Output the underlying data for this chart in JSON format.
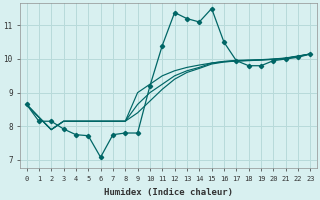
{
  "xlabel": "Humidex (Indice chaleur)",
  "bg_color": "#d8f0f0",
  "grid_color": "#b8dada",
  "line_color": "#006666",
  "xlim": [
    -0.5,
    23.5
  ],
  "ylim": [
    6.75,
    11.65
  ],
  "xticks": [
    0,
    1,
    2,
    3,
    4,
    5,
    6,
    7,
    8,
    9,
    10,
    11,
    12,
    13,
    14,
    15,
    16,
    17,
    18,
    19,
    20,
    21,
    22,
    23
  ],
  "yticks": [
    7,
    8,
    9,
    10,
    11
  ],
  "series_zigzag": [
    8.65,
    8.15,
    8.15,
    7.92,
    7.75,
    7.72,
    7.08,
    7.75,
    7.8,
    7.8,
    9.2,
    10.4,
    11.38,
    11.2,
    11.1,
    11.5,
    10.5,
    9.95,
    9.8,
    9.8,
    9.95,
    10.0,
    10.05,
    10.15
  ],
  "series_line1": [
    8.65,
    8.27,
    7.9,
    8.15,
    8.15,
    8.15,
    8.15,
    8.15,
    8.15,
    9.0,
    9.25,
    9.5,
    9.65,
    9.75,
    9.82,
    9.88,
    9.92,
    9.94,
    9.96,
    9.97,
    9.99,
    10.02,
    10.08,
    10.15
  ],
  "series_line2": [
    8.65,
    8.27,
    7.9,
    8.15,
    8.15,
    8.15,
    8.15,
    8.15,
    8.15,
    8.65,
    9.0,
    9.25,
    9.5,
    9.65,
    9.75,
    9.88,
    9.93,
    9.96,
    9.97,
    9.98,
    10.0,
    10.03,
    10.09,
    10.15
  ],
  "series_line3": [
    8.65,
    8.27,
    7.9,
    8.15,
    8.15,
    8.15,
    8.15,
    8.15,
    8.15,
    8.4,
    8.75,
    9.1,
    9.4,
    9.6,
    9.72,
    9.85,
    9.91,
    9.94,
    9.95,
    9.97,
    9.99,
    10.02,
    10.08,
    10.15
  ]
}
